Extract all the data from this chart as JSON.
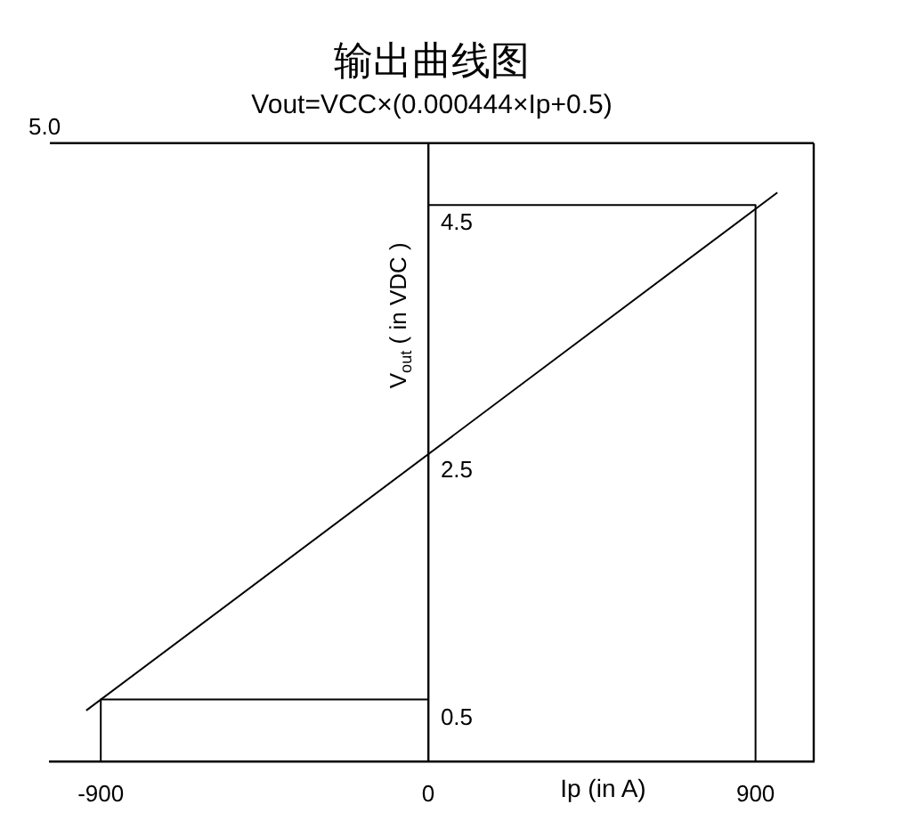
{
  "chart_data": {
    "type": "line",
    "title": "输出曲线图",
    "subtitle": "Vout=VCC×(0.000444×Ip+0.5)",
    "xlabel": "Ip (in A)",
    "ylabel": "V$_{out}$ ( in VDC )",
    "series": [
      {
        "x": [
          -940,
          960
        ],
        "values": [
          0.41,
          4.6
        ],
        "color": "#000000"
      },
      {
        "x": [
          -900,
          -900,
          0
        ],
        "values": [
          0,
          0.5,
          0.5
        ],
        "color": "#000000"
      },
      {
        "x": [
          900,
          900,
          0
        ],
        "values": [
          0,
          4.5,
          4.5
        ],
        "color": "#000000"
      }
    ],
    "xlim": [
      -1040,
      1060
    ],
    "xticks": [
      -900,
      0,
      900
    ],
    "ylim": [
      0,
      5
    ],
    "yticks": [
      0.5,
      2.5,
      4.5
    ],
    "ref_lines": [
      {
        "axis": "y",
        "value": 5,
        "label": "5.0",
        "color": "#000000"
      }
    ],
    "grid": false,
    "legend": false,
    "marker": "none",
    "line_style": "solid"
  }
}
